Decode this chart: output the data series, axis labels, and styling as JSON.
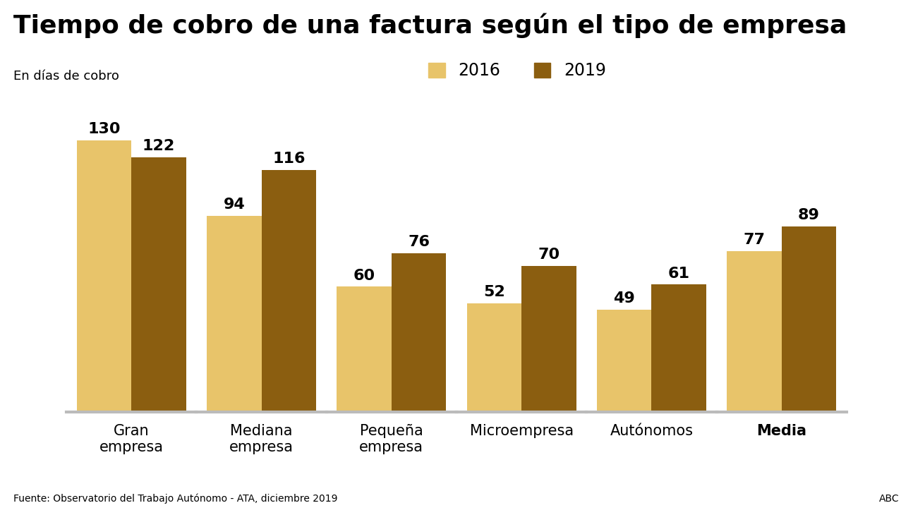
{
  "title": "Tiempo de cobro de una factura según el tipo de empresa",
  "subtitle": "En días de cobro",
  "categories": [
    "Gran\nempresa",
    "Mediana\nempresa",
    "Pequeña\nempresa",
    "Microempresa",
    "Autónomos",
    "Media"
  ],
  "values_2016": [
    130,
    94,
    60,
    52,
    49,
    77
  ],
  "values_2019": [
    122,
    116,
    76,
    70,
    61,
    89
  ],
  "color_2016": "#E8C46A",
  "color_2019": "#8B5E10",
  "bar_width": 0.42,
  "ylim": [
    0,
    148
  ],
  "legend_labels": [
    "2016",
    "2019"
  ],
  "source_text": "Fuente: Observatorio del Trabajo Autónomo - ATA, diciembre 2019",
  "source_right": "ABC",
  "title_fontsize": 26,
  "subtitle_fontsize": 13,
  "tick_fontsize": 15,
  "annotation_fontsize": 16,
  "legend_fontsize": 17,
  "source_fontsize": 10,
  "background_color": "#ffffff"
}
